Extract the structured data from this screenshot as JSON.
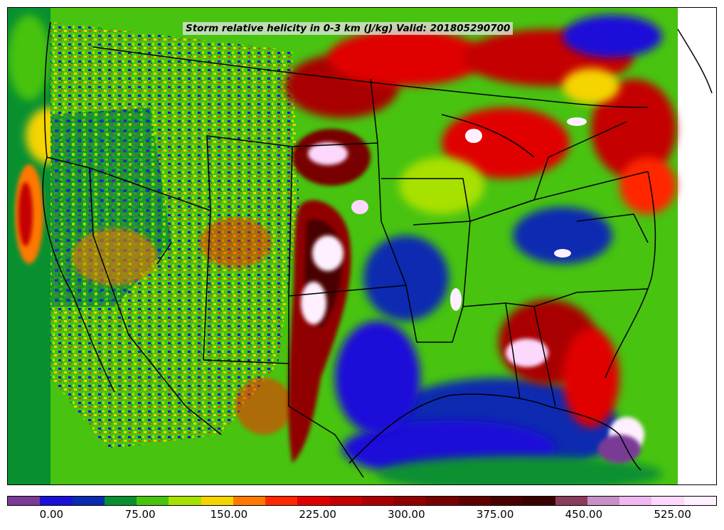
{
  "title": "Storm relative helicity in 0-3 km (J/kg) Valid: 201805290700",
  "colorbar": {
    "min": -37.5,
    "max": 562.5,
    "colors": [
      "#7a3a96",
      "#1a10d8",
      "#0a2ab0",
      "#089030",
      "#47c310",
      "#a8e000",
      "#f5d400",
      "#ff7800",
      "#ff2800",
      "#e00000",
      "#c40000",
      "#a80000",
      "#900000",
      "#780000",
      "#600000",
      "#4a0000",
      "#3a0000",
      "#8a3c5a",
      "#c890c8",
      "#f0b8f0",
      "#fcd8fc",
      "#fff0ff"
    ],
    "ticks": [
      {
        "value": 0,
        "label": "0.00"
      },
      {
        "value": 75,
        "label": "75.00"
      },
      {
        "value": 150,
        "label": "150.00"
      },
      {
        "value": 225,
        "label": "225.00"
      },
      {
        "value": 300,
        "label": "300.00"
      },
      {
        "value": 375,
        "label": "375.00"
      },
      {
        "value": 450,
        "label": "450.00"
      },
      {
        "value": 525,
        "label": "525.00"
      }
    ]
  },
  "map_colors": {
    "background_field": "#47c310",
    "low": "#1a10d8",
    "mid": "#f5d400",
    "high": "#c40000",
    "extreme": "#fcd8fc",
    "boundary_line": "#000000"
  }
}
